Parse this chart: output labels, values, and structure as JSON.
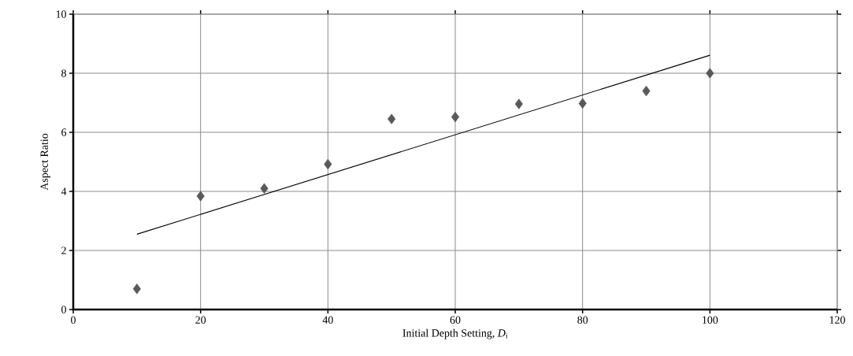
{
  "chart_data": {
    "type": "scatter",
    "xlabel": "Initial Depth Setting, *D*$_{i}$",
    "ylabel": "Aspect  Ratio",
    "x": [
      10,
      20,
      30,
      40,
      50,
      60,
      70,
      80,
      90,
      100
    ],
    "series": [
      {
        "color": "#595959",
        "marker": "diamond",
        "values": [
          0.7,
          3.84,
          4.1,
          4.92,
          6.45,
          6.52,
          6.96,
          6.98,
          7.4,
          8.0
        ]
      },
      {
        "type": "line",
        "color": "#000000",
        "marker": "none",
        "x": [
          10,
          100
        ],
        "values": [
          2.55,
          8.61
        ]
      }
    ],
    "xlim": [
      0,
      120
    ],
    "ylim": [
      0,
      10
    ],
    "xticks": [
      0,
      20,
      40,
      60,
      80,
      100,
      120
    ],
    "yticks": [
      0,
      2,
      4,
      6,
      8,
      10
    ],
    "grid": true
  }
}
